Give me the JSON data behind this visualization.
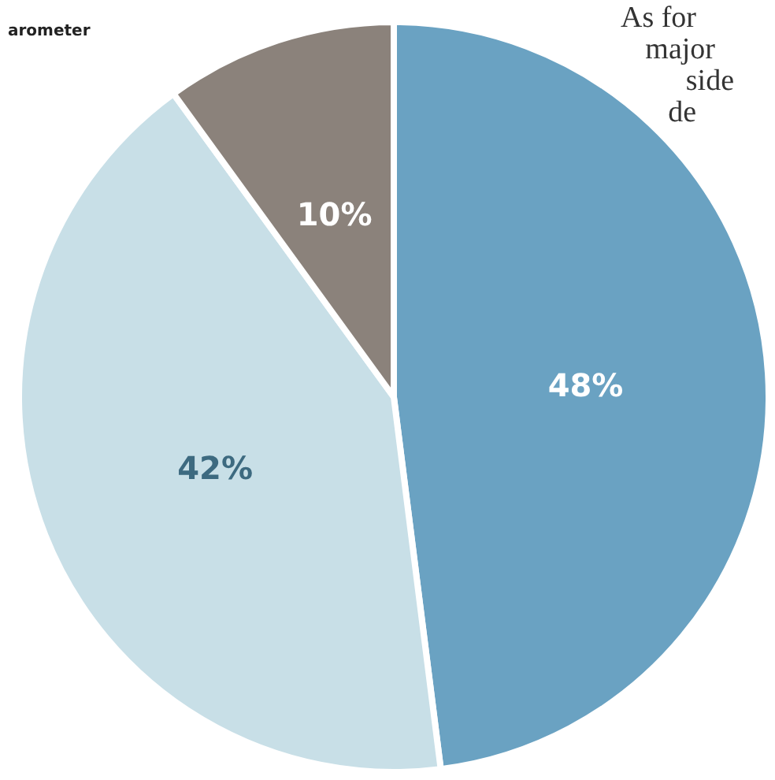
{
  "chart_data": {
    "type": "pie",
    "title": "arometer",
    "categories": [
      null,
      null,
      null
    ],
    "values": [
      48,
      42,
      10
    ],
    "value_labels": [
      "48%",
      "42%",
      "10%"
    ],
    "colors": [
      "#6aa2c2",
      "#c8dfe7",
      "#8b827b"
    ],
    "annotations": [
      "As for",
      "major",
      "side",
      "de"
    ]
  }
}
